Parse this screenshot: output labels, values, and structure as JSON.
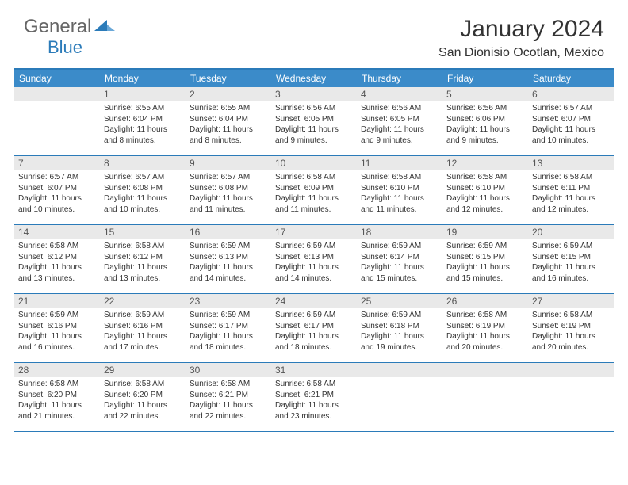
{
  "logo": {
    "text1": "General",
    "text2": "Blue"
  },
  "title": "January 2024",
  "location": "San Dionisio Ocotlan, Mexico",
  "colors": {
    "header_bg": "#3b8bc9",
    "border": "#2b7bb9",
    "daynum_bg": "#e9e9e9",
    "text": "#333333"
  },
  "weekdays": [
    "Sunday",
    "Monday",
    "Tuesday",
    "Wednesday",
    "Thursday",
    "Friday",
    "Saturday"
  ],
  "weeks": [
    [
      {
        "num": "",
        "sunrise": "",
        "sunset": "",
        "daylight": ""
      },
      {
        "num": "1",
        "sunrise": "Sunrise: 6:55 AM",
        "sunset": "Sunset: 6:04 PM",
        "daylight": "Daylight: 11 hours and 8 minutes."
      },
      {
        "num": "2",
        "sunrise": "Sunrise: 6:55 AM",
        "sunset": "Sunset: 6:04 PM",
        "daylight": "Daylight: 11 hours and 8 minutes."
      },
      {
        "num": "3",
        "sunrise": "Sunrise: 6:56 AM",
        "sunset": "Sunset: 6:05 PM",
        "daylight": "Daylight: 11 hours and 9 minutes."
      },
      {
        "num": "4",
        "sunrise": "Sunrise: 6:56 AM",
        "sunset": "Sunset: 6:05 PM",
        "daylight": "Daylight: 11 hours and 9 minutes."
      },
      {
        "num": "5",
        "sunrise": "Sunrise: 6:56 AM",
        "sunset": "Sunset: 6:06 PM",
        "daylight": "Daylight: 11 hours and 9 minutes."
      },
      {
        "num": "6",
        "sunrise": "Sunrise: 6:57 AM",
        "sunset": "Sunset: 6:07 PM",
        "daylight": "Daylight: 11 hours and 10 minutes."
      }
    ],
    [
      {
        "num": "7",
        "sunrise": "Sunrise: 6:57 AM",
        "sunset": "Sunset: 6:07 PM",
        "daylight": "Daylight: 11 hours and 10 minutes."
      },
      {
        "num": "8",
        "sunrise": "Sunrise: 6:57 AM",
        "sunset": "Sunset: 6:08 PM",
        "daylight": "Daylight: 11 hours and 10 minutes."
      },
      {
        "num": "9",
        "sunrise": "Sunrise: 6:57 AM",
        "sunset": "Sunset: 6:08 PM",
        "daylight": "Daylight: 11 hours and 11 minutes."
      },
      {
        "num": "10",
        "sunrise": "Sunrise: 6:58 AM",
        "sunset": "Sunset: 6:09 PM",
        "daylight": "Daylight: 11 hours and 11 minutes."
      },
      {
        "num": "11",
        "sunrise": "Sunrise: 6:58 AM",
        "sunset": "Sunset: 6:10 PM",
        "daylight": "Daylight: 11 hours and 11 minutes."
      },
      {
        "num": "12",
        "sunrise": "Sunrise: 6:58 AM",
        "sunset": "Sunset: 6:10 PM",
        "daylight": "Daylight: 11 hours and 12 minutes."
      },
      {
        "num": "13",
        "sunrise": "Sunrise: 6:58 AM",
        "sunset": "Sunset: 6:11 PM",
        "daylight": "Daylight: 11 hours and 12 minutes."
      }
    ],
    [
      {
        "num": "14",
        "sunrise": "Sunrise: 6:58 AM",
        "sunset": "Sunset: 6:12 PM",
        "daylight": "Daylight: 11 hours and 13 minutes."
      },
      {
        "num": "15",
        "sunrise": "Sunrise: 6:58 AM",
        "sunset": "Sunset: 6:12 PM",
        "daylight": "Daylight: 11 hours and 13 minutes."
      },
      {
        "num": "16",
        "sunrise": "Sunrise: 6:59 AM",
        "sunset": "Sunset: 6:13 PM",
        "daylight": "Daylight: 11 hours and 14 minutes."
      },
      {
        "num": "17",
        "sunrise": "Sunrise: 6:59 AM",
        "sunset": "Sunset: 6:13 PM",
        "daylight": "Daylight: 11 hours and 14 minutes."
      },
      {
        "num": "18",
        "sunrise": "Sunrise: 6:59 AM",
        "sunset": "Sunset: 6:14 PM",
        "daylight": "Daylight: 11 hours and 15 minutes."
      },
      {
        "num": "19",
        "sunrise": "Sunrise: 6:59 AM",
        "sunset": "Sunset: 6:15 PM",
        "daylight": "Daylight: 11 hours and 15 minutes."
      },
      {
        "num": "20",
        "sunrise": "Sunrise: 6:59 AM",
        "sunset": "Sunset: 6:15 PM",
        "daylight": "Daylight: 11 hours and 16 minutes."
      }
    ],
    [
      {
        "num": "21",
        "sunrise": "Sunrise: 6:59 AM",
        "sunset": "Sunset: 6:16 PM",
        "daylight": "Daylight: 11 hours and 16 minutes."
      },
      {
        "num": "22",
        "sunrise": "Sunrise: 6:59 AM",
        "sunset": "Sunset: 6:16 PM",
        "daylight": "Daylight: 11 hours and 17 minutes."
      },
      {
        "num": "23",
        "sunrise": "Sunrise: 6:59 AM",
        "sunset": "Sunset: 6:17 PM",
        "daylight": "Daylight: 11 hours and 18 minutes."
      },
      {
        "num": "24",
        "sunrise": "Sunrise: 6:59 AM",
        "sunset": "Sunset: 6:17 PM",
        "daylight": "Daylight: 11 hours and 18 minutes."
      },
      {
        "num": "25",
        "sunrise": "Sunrise: 6:59 AM",
        "sunset": "Sunset: 6:18 PM",
        "daylight": "Daylight: 11 hours and 19 minutes."
      },
      {
        "num": "26",
        "sunrise": "Sunrise: 6:58 AM",
        "sunset": "Sunset: 6:19 PM",
        "daylight": "Daylight: 11 hours and 20 minutes."
      },
      {
        "num": "27",
        "sunrise": "Sunrise: 6:58 AM",
        "sunset": "Sunset: 6:19 PM",
        "daylight": "Daylight: 11 hours and 20 minutes."
      }
    ],
    [
      {
        "num": "28",
        "sunrise": "Sunrise: 6:58 AM",
        "sunset": "Sunset: 6:20 PM",
        "daylight": "Daylight: 11 hours and 21 minutes."
      },
      {
        "num": "29",
        "sunrise": "Sunrise: 6:58 AM",
        "sunset": "Sunset: 6:20 PM",
        "daylight": "Daylight: 11 hours and 22 minutes."
      },
      {
        "num": "30",
        "sunrise": "Sunrise: 6:58 AM",
        "sunset": "Sunset: 6:21 PM",
        "daylight": "Daylight: 11 hours and 22 minutes."
      },
      {
        "num": "31",
        "sunrise": "Sunrise: 6:58 AM",
        "sunset": "Sunset: 6:21 PM",
        "daylight": "Daylight: 11 hours and 23 minutes."
      },
      {
        "num": "",
        "sunrise": "",
        "sunset": "",
        "daylight": ""
      },
      {
        "num": "",
        "sunrise": "",
        "sunset": "",
        "daylight": ""
      },
      {
        "num": "",
        "sunrise": "",
        "sunset": "",
        "daylight": ""
      }
    ]
  ]
}
